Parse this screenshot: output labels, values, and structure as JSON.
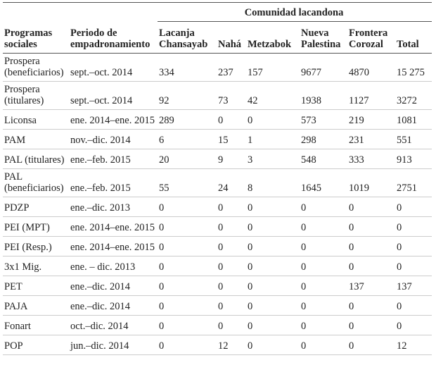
{
  "table": {
    "group_header": "Comunidad lacandona",
    "columns": [
      "Programas sociales",
      "Periodo de empadronamiento",
      "Lacanja Chansayab",
      "Nahá",
      "Metzabok",
      "Nueva Palestina",
      "Frontera Corozal",
      "Total"
    ],
    "rows": [
      [
        "Prospera (beneficiarios)",
        "sept.–oct. 2014",
        "334",
        "237",
        "157",
        "9677",
        "4870",
        "15 275"
      ],
      [
        "Prospera (titulares)",
        "sept.–oct. 2014",
        "92",
        "73",
        "42",
        "1938",
        "1127",
        "3272"
      ],
      [
        "Liconsa",
        "ene. 2014–ene. 2015",
        "289",
        "0",
        "0",
        "573",
        "219",
        "1081"
      ],
      [
        "PAM",
        "nov.–dic. 2014",
        "6",
        "15",
        "1",
        "298",
        "231",
        "551"
      ],
      [
        "PAL (titulares)",
        "ene.–feb. 2015",
        "20",
        "9",
        "3",
        "548",
        "333",
        "913"
      ],
      [
        "PAL (beneficiarios)",
        "ene.–feb. 2015",
        "55",
        "24",
        "8",
        "1645",
        "1019",
        "2751"
      ],
      [
        "PDZP",
        "ene.–dic. 2013",
        "0",
        "0",
        "0",
        "0",
        "0",
        "0"
      ],
      [
        "PEI (MPT)",
        "ene. 2014–ene. 2015",
        "0",
        "0",
        "0",
        "0",
        "0",
        "0"
      ],
      [
        "PEI (Resp.)",
        "ene. 2014–ene. 2015",
        "0",
        "0",
        "0",
        "0",
        "0",
        "0"
      ],
      [
        "3x1 Mig.",
        "ene. – dic. 2013",
        "0",
        "0",
        "0",
        "0",
        "0",
        "0"
      ],
      [
        "PET",
        "ene.–dic. 2014",
        "0",
        "0",
        "0",
        "0",
        "137",
        "137"
      ],
      [
        "PAJA",
        "ene.–dic. 2014",
        "0",
        "0",
        "0",
        "0",
        "0",
        "0"
      ],
      [
        "Fonart",
        "oct.–dic. 2014",
        "0",
        "0",
        "0",
        "0",
        "0",
        "0"
      ],
      [
        "POP",
        "jun.–dic. 2014",
        "0",
        "12",
        "0",
        "0",
        "0",
        "12"
      ]
    ]
  }
}
